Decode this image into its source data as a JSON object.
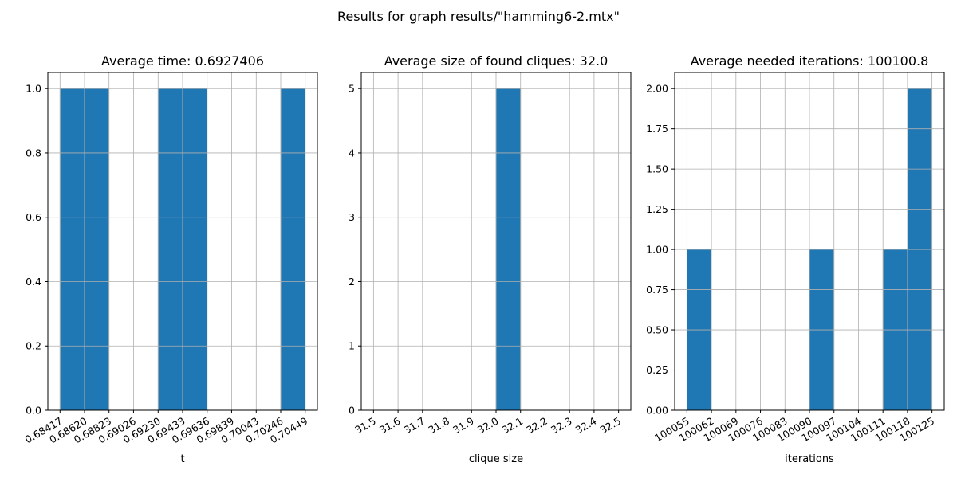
{
  "suptitle": "Results for graph results/\"hamming6-2.mtx\"",
  "chart_data": [
    {
      "type": "bar",
      "title": "Average time: 0.6927406",
      "xlabel": "t",
      "ylabel": "",
      "grid": true,
      "xlim": [
        0.68316,
        0.7055
      ],
      "ylim": [
        0,
        1.05
      ],
      "bin_edges": [
        0.68417,
        0.6862,
        0.68823,
        0.69026,
        0.6923,
        0.69433,
        0.69636,
        0.69839,
        0.70043,
        0.70246,
        0.70449
      ],
      "values": [
        1,
        1,
        0,
        0,
        1,
        1,
        0,
        0,
        0,
        1
      ],
      "xticks": [
        0.68417,
        0.6862,
        0.68823,
        0.69026,
        0.6923,
        0.69433,
        0.69636,
        0.69839,
        0.70043,
        0.70246,
        0.70449
      ],
      "xtick_labels": [
        "0.68417",
        "0.68620",
        "0.68823",
        "0.69026",
        "0.69230",
        "0.69433",
        "0.69636",
        "0.69839",
        "0.70043",
        "0.70246",
        "0.70449"
      ],
      "yticks": [
        0,
        0.2,
        0.4,
        0.6,
        0.8,
        1.0
      ],
      "ytick_labels": [
        "0.0",
        "0.2",
        "0.4",
        "0.6",
        "0.8",
        "1.0"
      ]
    },
    {
      "type": "bar",
      "title": "Average size of found cliques: 32.0",
      "xlabel": "clique size",
      "ylabel": "",
      "grid": true,
      "xlim": [
        31.45,
        32.55
      ],
      "ylim": [
        0,
        5.25
      ],
      "bin_edges": [
        31.5,
        31.6,
        31.7,
        31.8,
        31.9,
        32.0,
        32.1,
        32.2,
        32.3,
        32.4,
        32.5
      ],
      "values": [
        0,
        0,
        0,
        0,
        0,
        5,
        0,
        0,
        0,
        0
      ],
      "xticks": [
        31.5,
        31.6,
        31.7,
        31.8,
        31.9,
        32.0,
        32.1,
        32.2,
        32.3,
        32.4,
        32.5
      ],
      "xtick_labels": [
        "31.5",
        "31.6",
        "31.7",
        "31.8",
        "31.9",
        "32.0",
        "32.1",
        "32.2",
        "32.3",
        "32.4",
        "32.5"
      ],
      "yticks": [
        0,
        1,
        2,
        3,
        4,
        5
      ],
      "ytick_labels": [
        "0",
        "1",
        "2",
        "3",
        "4",
        "5"
      ]
    },
    {
      "type": "bar",
      "title": "Average needed iterations: 100100.8",
      "xlabel": "iterations",
      "ylabel": "",
      "grid": true,
      "xlim": [
        100051.5,
        100128.5
      ],
      "ylim": [
        0,
        2.1
      ],
      "bin_edges": [
        100055,
        100062,
        100069,
        100076,
        100083,
        100090,
        100097,
        100104,
        100111,
        100118,
        100125
      ],
      "values": [
        1,
        0,
        0,
        0,
        0,
        1,
        0,
        0,
        1,
        2
      ],
      "xticks": [
        100055,
        100062,
        100069,
        100076,
        100083,
        100090,
        100097,
        100104,
        100111,
        100118,
        100125
      ],
      "xtick_labels": [
        "100055",
        "100062",
        "100069",
        "100076",
        "100083",
        "100090",
        "100097",
        "100104",
        "100111",
        "100118",
        "100125"
      ],
      "yticks": [
        0,
        0.25,
        0.5,
        0.75,
        1.0,
        1.25,
        1.5,
        1.75,
        2.0
      ],
      "ytick_labels": [
        "0.00",
        "0.25",
        "0.50",
        "0.75",
        "1.00",
        "1.25",
        "1.50",
        "1.75",
        "2.00"
      ]
    }
  ]
}
